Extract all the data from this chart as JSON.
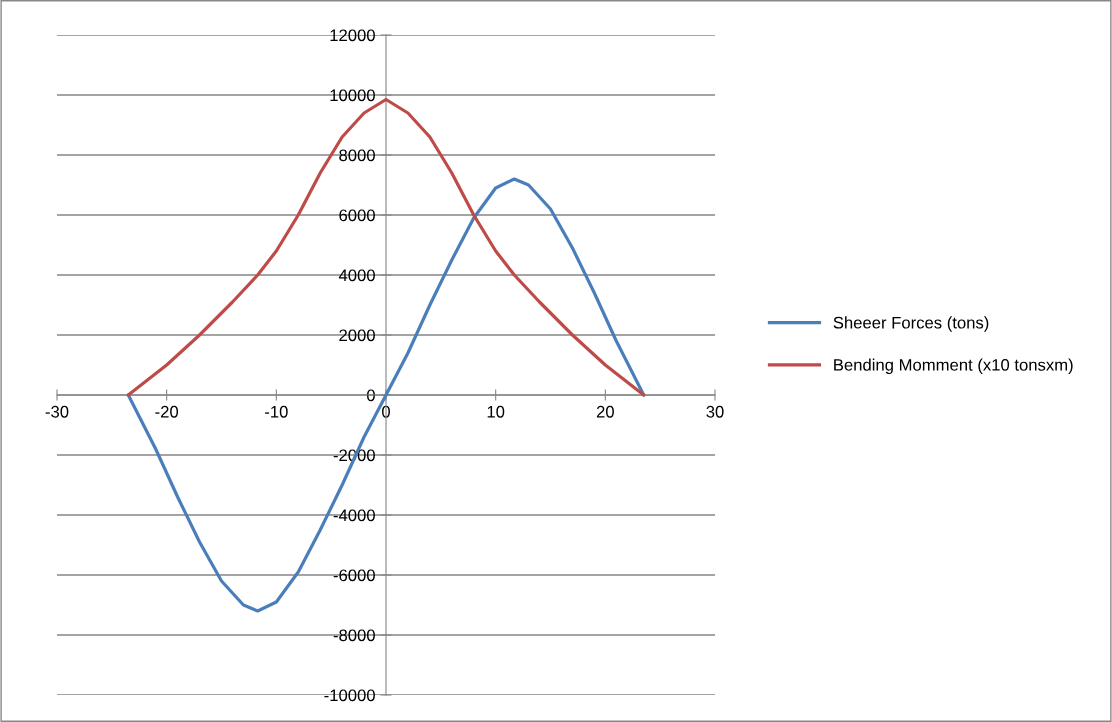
{
  "chart_data": {
    "type": "line",
    "series": [
      {
        "name": "Sheeer Forces (tons)",
        "color": "#4a7ebb",
        "x": [
          -23.5,
          -21,
          -19,
          -17,
          -15,
          -13,
          -11.7,
          -10,
          -8,
          -6,
          -4,
          -2,
          0,
          2,
          4,
          6,
          8,
          10,
          11.7,
          13,
          15,
          17,
          19,
          21,
          23.5
        ],
        "values": [
          0,
          -1800,
          -3400,
          -4900,
          -6200,
          -7000,
          -7200,
          -6900,
          -5900,
          -4500,
          -3000,
          -1400,
          0,
          1400,
          3000,
          4500,
          5900,
          6900,
          7200,
          7000,
          6200,
          4900,
          3400,
          1800,
          0
        ]
      },
      {
        "name": "Bending Momment (x10 tonsxm)",
        "color": "#be4b48",
        "x": [
          -23.5,
          -20,
          -17,
          -14,
          -11.7,
          -10,
          -8,
          -6,
          -4,
          -2,
          0,
          2,
          4,
          6,
          8,
          10,
          11.7,
          14,
          17,
          20,
          23.5
        ],
        "values": [
          0,
          1000,
          2000,
          3100,
          4000,
          4800,
          6000,
          7400,
          8600,
          9400,
          9850,
          9400,
          8600,
          7400,
          6000,
          4800,
          4000,
          3100,
          2000,
          1000,
          0
        ]
      }
    ],
    "xlim": [
      -30,
      30
    ],
    "xticks": [
      -30,
      -20,
      -10,
      0,
      10,
      20,
      30
    ],
    "ylim": [
      -10000,
      12000
    ],
    "yticks": [
      -10000,
      -8000,
      -6000,
      -4000,
      -2000,
      0,
      2000,
      4000,
      6000,
      8000,
      10000,
      12000
    ],
    "grid": "y",
    "legend": "right",
    "marker": "none",
    "line_style": "solid"
  }
}
